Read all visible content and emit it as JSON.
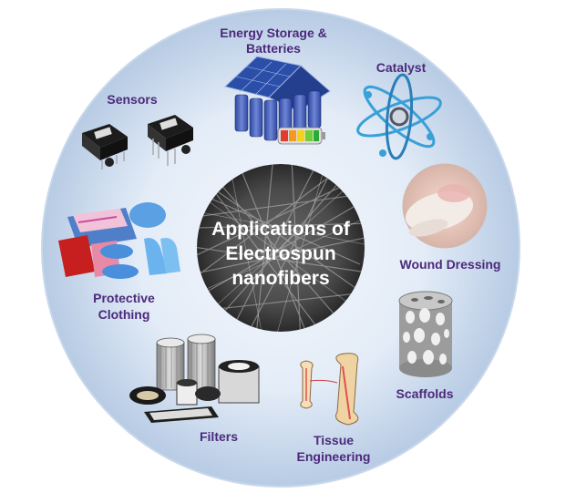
{
  "center": {
    "line1": "Applications of",
    "line2": "Electrospun",
    "line3": "nanofibers"
  },
  "labels": {
    "energy_line1": "Energy Storage &",
    "energy_line2": "Batteries",
    "catalyst": "Catalyst",
    "sensors": "Sensors",
    "wound": "Wound Dressing",
    "protective_line1": "Protective",
    "protective_line2": "Clothing",
    "scaffolds": "Scaffolds",
    "filters": "Filters",
    "tissue_line1": "Tissue",
    "tissue_line2": "Engineering"
  },
  "colors": {
    "label_text": "#4b2a7a",
    "outer_circle_light": "#eef3fa",
    "outer_circle_dark": "#b9cde6",
    "center_dark": "#3a3a3a",
    "solar_panel": "#2b4fa8",
    "glove_blue": "#5aa9e6"
  },
  "icons": {
    "energy": "solar-house-battery-icon",
    "catalyst": "atom-icon",
    "sensors": "sensor-chip-icon",
    "wound": "wound-dressing-icon",
    "protective": "protective-gear-icon",
    "scaffolds": "porous-cylinder-icon",
    "filters": "air-filter-icon",
    "tissue": "bone-icon"
  }
}
